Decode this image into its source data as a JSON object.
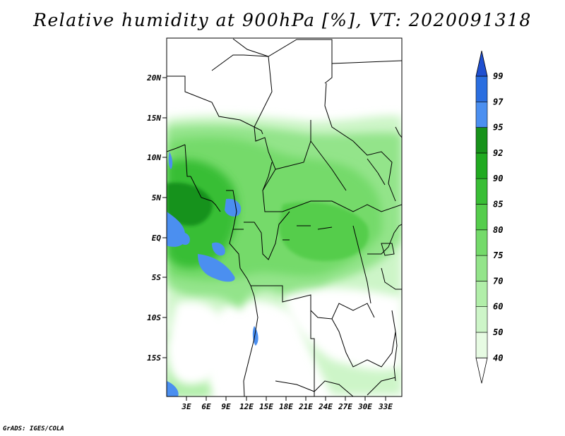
{
  "title": "Relative humidity at 900hPa [%], VT: 2020091318",
  "credit": "GrADS: IGES/COLA",
  "lat_labels": [
    "20N",
    "15N",
    "10N",
    "5N",
    "EQ",
    "5S",
    "10S",
    "15S"
  ],
  "lon_labels": [
    "3E",
    "6E",
    "9E",
    "12E",
    "15E",
    "18E",
    "21E",
    "24E",
    "27E",
    "30E",
    "33E"
  ],
  "colorbar": {
    "levels": [
      "40",
      "50",
      "60",
      "70",
      "75",
      "80",
      "85",
      "90",
      "92",
      "95",
      "97",
      "99"
    ],
    "colors": [
      "#ffffff",
      "#e7fbe3",
      "#cdf5c8",
      "#b1eea9",
      "#93e48a",
      "#74da6a",
      "#55cd4c",
      "#39be35",
      "#20aa20",
      "#17921a",
      "#4b8ff0",
      "#2a6ee0",
      "#1f4fd0"
    ]
  },
  "map": {
    "lat_range": [
      "19S",
      "24N"
    ],
    "lon_range": [
      "0E",
      "34E"
    ]
  }
}
